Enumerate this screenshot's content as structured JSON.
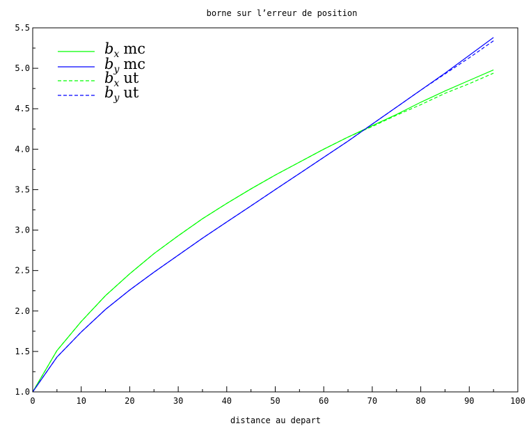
{
  "chart_data": {
    "type": "line",
    "title": "borne sur l’erreur de position",
    "xlabel": "distance au depart",
    "ylabel": "",
    "xlim": [
      0,
      100
    ],
    "ylim": [
      1.0,
      5.5
    ],
    "x_ticks": [
      "0",
      "10",
      "20",
      "30",
      "40",
      "50",
      "60",
      "70",
      "80",
      "90",
      "100"
    ],
    "y_ticks": [
      "1.0",
      "1.5",
      "2.0",
      "2.5",
      "3.0",
      "3.5",
      "4.0",
      "4.5",
      "5.0",
      "5.5"
    ],
    "x_tick_values": [
      0,
      10,
      20,
      30,
      40,
      50,
      60,
      70,
      80,
      90,
      100
    ],
    "y_tick_values": [
      1.0,
      1.5,
      2.0,
      2.5,
      3.0,
      3.5,
      4.0,
      4.5,
      5.0,
      5.5
    ],
    "x_minor_step": 5,
    "y_minor_step": 0.25,
    "grid": false,
    "legend_position": "top-left",
    "series": [
      {
        "name": "b_x mc",
        "legend_var": "b",
        "legend_sub": "x",
        "legend_rest": "mc",
        "color": "#00ff00",
        "dash": "solid",
        "x": [
          0,
          5,
          10,
          15,
          20,
          25,
          30,
          35,
          40,
          45,
          50,
          55,
          60,
          65,
          70,
          75,
          80,
          85,
          90,
          95
        ],
        "y": [
          1.0,
          1.51,
          1.87,
          2.19,
          2.46,
          2.71,
          2.93,
          3.14,
          3.33,
          3.51,
          3.68,
          3.84,
          4.0,
          4.15,
          4.29,
          4.43,
          4.58,
          4.72,
          4.85,
          4.98
        ]
      },
      {
        "name": "b_y mc",
        "legend_var": "b",
        "legend_sub": "y",
        "legend_rest": "mc",
        "color": "#0000ff",
        "dash": "solid",
        "x": [
          0,
          5,
          10,
          15,
          20,
          25,
          30,
          35,
          40,
          45,
          50,
          55,
          60,
          65,
          70,
          75,
          80,
          85,
          90,
          95
        ],
        "y": [
          1.0,
          1.43,
          1.74,
          2.02,
          2.26,
          2.48,
          2.69,
          2.9,
          3.1,
          3.3,
          3.5,
          3.7,
          3.9,
          4.1,
          4.31,
          4.52,
          4.73,
          4.94,
          5.16,
          5.38
        ]
      },
      {
        "name": "b_x ut",
        "legend_var": "b",
        "legend_sub": "x",
        "legend_rest": "ut",
        "color": "#00ff00",
        "dash": "dashed",
        "x": [
          0,
          5,
          10,
          15,
          20,
          25,
          30,
          35,
          40,
          45,
          50,
          55,
          60,
          65,
          70,
          75,
          80,
          85,
          90,
          95
        ],
        "y": [
          1.0,
          1.51,
          1.87,
          2.19,
          2.46,
          2.71,
          2.93,
          3.14,
          3.33,
          3.51,
          3.68,
          3.84,
          4.0,
          4.15,
          4.28,
          4.42,
          4.55,
          4.69,
          4.81,
          4.94
        ]
      },
      {
        "name": "b_y ut",
        "legend_var": "b",
        "legend_sub": "y",
        "legend_rest": "ut",
        "color": "#0000ff",
        "dash": "dashed",
        "x": [
          0,
          5,
          10,
          15,
          20,
          25,
          30,
          35,
          40,
          45,
          50,
          55,
          60,
          65,
          70,
          75,
          80,
          85,
          90,
          95
        ],
        "y": [
          1.0,
          1.43,
          1.74,
          2.02,
          2.26,
          2.48,
          2.69,
          2.9,
          3.1,
          3.3,
          3.5,
          3.7,
          3.9,
          4.1,
          4.31,
          4.52,
          4.73,
          4.93,
          5.13,
          5.34
        ]
      }
    ]
  }
}
